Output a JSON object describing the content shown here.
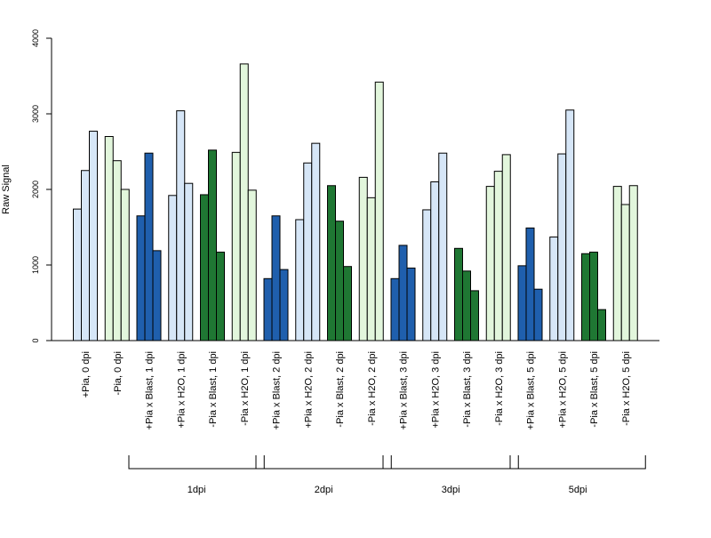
{
  "chart_data": {
    "type": "bar",
    "title": "",
    "xlabel": "",
    "ylabel": "Raw Signal",
    "ylim": [
      0,
      4000
    ],
    "yticks": [
      "0",
      "1000",
      "2000",
      "3000",
      "4000"
    ],
    "grid": false,
    "legend": "none",
    "categories": [
      "+Pia, 0 dpi",
      "-Pia, 0 dpi",
      "+Pia x Blast, 1 dpi",
      "+Pia x H2O, 1 dpi",
      "-Pia x Blast, 1 dpi",
      "-Pia x H2O, 1 dpi",
      "+Pia x Blast, 2 dpi",
      "+Pia x H2O, 2 dpi",
      "-Pia x Blast, 2 dpi",
      "-Pia x H2O, 2 dpi",
      "+Pia x Blast, 3 dpi",
      "+Pia x H2O, 3 dpi",
      "-Pia x Blast, 3 dpi",
      "-Pia x H2O, 3 dpi",
      "+Pia x Blast, 5 dpi",
      "+Pia x H2O, 5 dpi",
      "-Pia x Blast, 5 dpi",
      "-Pia x H2O, 5 dpi"
    ],
    "bar_colors": [
      "#d6e6f7",
      "#e2f6dc",
      "#1f5fad",
      "#d6e6f7",
      "#1f7733",
      "#e2f6dc",
      "#1f5fad",
      "#d6e6f7",
      "#1f7733",
      "#e2f6dc",
      "#1f5fad",
      "#d6e6f7",
      "#1f7733",
      "#e2f6dc",
      "#1f5fad",
      "#d6e6f7",
      "#1f7733",
      "#e2f6dc"
    ],
    "values": [
      [
        1740,
        2250,
        2770
      ],
      [
        2700,
        2380,
        2000
      ],
      [
        1650,
        2480,
        1190
      ],
      [
        1920,
        3040,
        2080
      ],
      [
        1930,
        2520,
        1170
      ],
      [
        2490,
        3660,
        1990
      ],
      [
        820,
        1650,
        940
      ],
      [
        1600,
        2350,
        2610
      ],
      [
        2050,
        1580,
        980
      ],
      [
        2160,
        1890,
        3420
      ],
      [
        820,
        1260,
        960
      ],
      [
        1730,
        2100,
        2480
      ],
      [
        1220,
        920,
        660
      ],
      [
        2040,
        2240,
        2460
      ],
      [
        990,
        1490,
        680
      ],
      [
        1370,
        2470,
        3050
      ],
      [
        1150,
        1170,
        410
      ],
      [
        2040,
        1800,
        2050
      ]
    ],
    "groups": [
      {
        "label": "1dpi",
        "from": 2,
        "to": 5
      },
      {
        "label": "2dpi",
        "from": 6,
        "to": 9
      },
      {
        "label": "3dpi",
        "from": 10,
        "to": 13
      },
      {
        "label": "5dpi",
        "from": 14,
        "to": 17
      }
    ]
  }
}
